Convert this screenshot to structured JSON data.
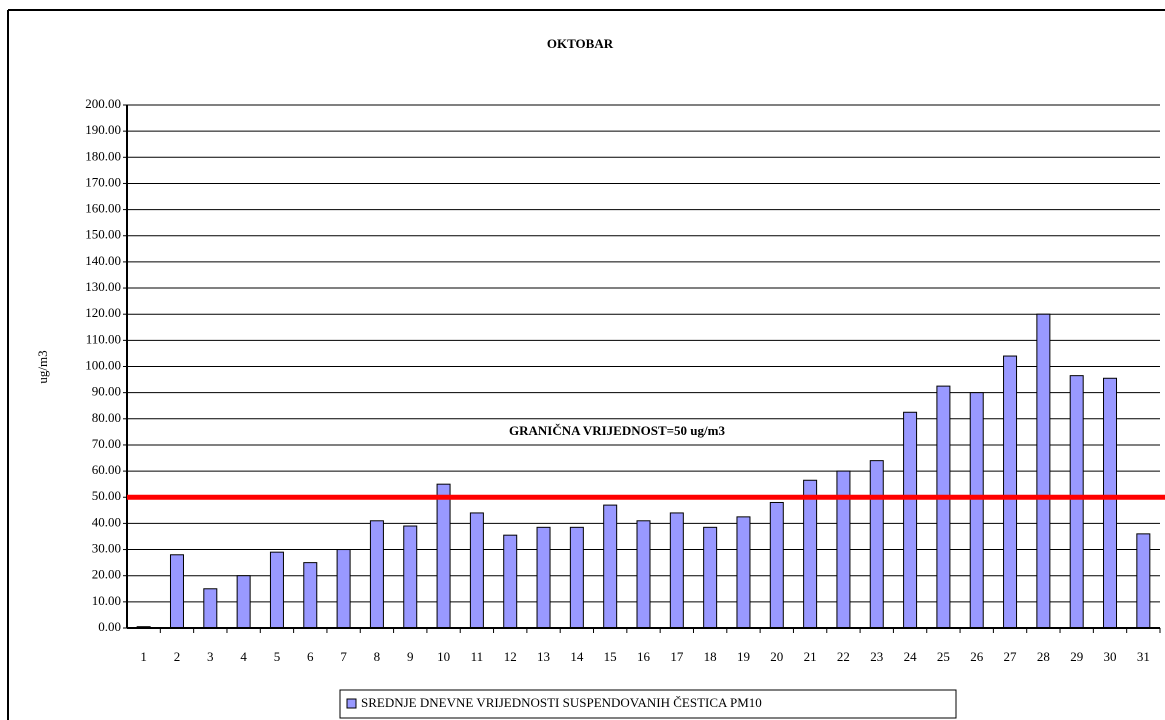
{
  "chart_data": {
    "type": "bar",
    "title": "OKTOBAR",
    "y_label": "ug/m3",
    "categories": [
      "1",
      "2",
      "3",
      "4",
      "5",
      "6",
      "7",
      "8",
      "9",
      "10",
      "11",
      "12",
      "13",
      "14",
      "15",
      "16",
      "17",
      "18",
      "19",
      "20",
      "21",
      "22",
      "23",
      "24",
      "25",
      "26",
      "27",
      "28",
      "29",
      "30",
      "31"
    ],
    "series": [
      {
        "name": "SREDNJE DNEVNE VRIJEDNOSTI SUSPENDOVANIH ČESTICA PM10",
        "color": "#9999ff",
        "values": [
          0.5,
          28,
          15,
          20,
          29,
          25,
          30,
          41,
          39,
          55,
          44,
          35.5,
          38.5,
          38.5,
          47,
          41,
          44,
          38.5,
          42.5,
          48,
          56.5,
          60,
          64,
          82.5,
          92.5,
          90,
          104,
          120,
          96.5,
          95.5,
          36
        ]
      }
    ],
    "threshold": {
      "value": 50,
      "label": "GRANIČNA VRIJEDNOST=50 ug/m3",
      "color": "#ff0000"
    },
    "ylim": [
      0,
      200
    ],
    "yticks": [
      {
        "value": 0,
        "label": "0.00"
      },
      {
        "value": 10,
        "label": "10.00"
      },
      {
        "value": 20,
        "label": "20.00"
      },
      {
        "value": 30,
        "label": "30.00"
      },
      {
        "value": 40,
        "label": "40.00"
      },
      {
        "value": 50,
        "label": "50.00"
      },
      {
        "value": 60,
        "label": "60.00"
      },
      {
        "value": 70,
        "label": "70.00"
      },
      {
        "value": 80,
        "label": "80.00"
      },
      {
        "value": 90,
        "label": "90.00"
      },
      {
        "value": 100,
        "label": "100.00"
      },
      {
        "value": 110,
        "label": "110.00"
      },
      {
        "value": 120,
        "label": "120.00"
      },
      {
        "value": 130,
        "label": "130.00"
      },
      {
        "value": 140,
        "label": "140.00"
      },
      {
        "value": 150,
        "label": "150.00"
      },
      {
        "value": 160,
        "label": "160.00"
      },
      {
        "value": 170,
        "label": "170.00"
      },
      {
        "value": 180,
        "label": "180.00"
      },
      {
        "value": 190,
        "label": "190.00"
      },
      {
        "value": 200,
        "label": "200.00"
      }
    ],
    "grid": true,
    "legend": "bottom"
  }
}
